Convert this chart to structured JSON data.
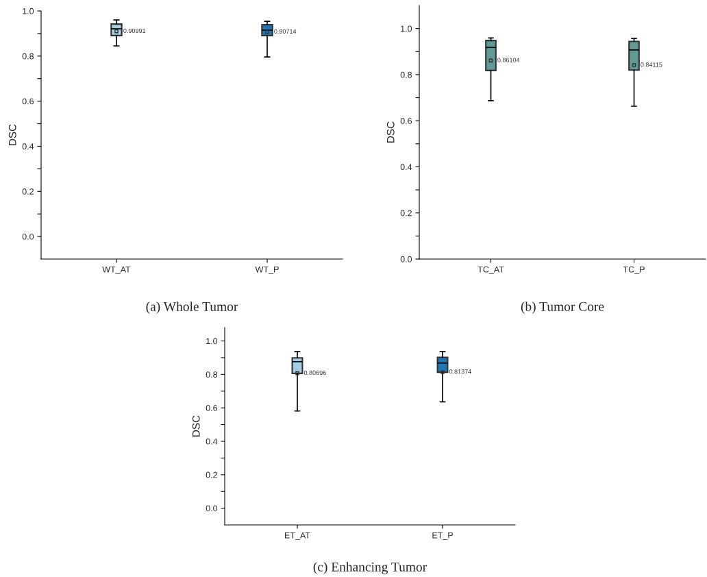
{
  "chart_data": [
    {
      "type": "box",
      "title": "(a) Whole Tumor",
      "ylabel": "DSC",
      "categories": [
        "WT_AT",
        "WT_P"
      ],
      "colors": [
        "#a6cee3",
        "#1f78b4"
      ],
      "boxes": [
        {
          "low": 0.845,
          "q1": 0.891,
          "median": 0.921,
          "q3": 0.942,
          "high": 0.96,
          "mean": 0.90991
        },
        {
          "low": 0.796,
          "q1": 0.891,
          "median": 0.915,
          "q3": 0.939,
          "high": 0.954,
          "mean": 0.90714
        }
      ],
      "annotations": [
        "0.90991",
        "0.90714"
      ],
      "ylim": [
        -0.1,
        1.0
      ],
      "yticks": [
        {
          "value": 0,
          "label": "0.0"
        },
        {
          "value": 0.1,
          "label": null
        },
        0.2,
        {
          "value": 0.3,
          "label": null
        },
        0.4,
        {
          "value": 0.5,
          "label": null
        },
        0.6,
        {
          "value": 0.7,
          "label": null
        },
        0.8,
        {
          "value": 0.9,
          "label": null
        },
        {
          "value": 1,
          "label": "1.0"
        }
      ],
      "grid": false,
      "legend": false
    },
    {
      "type": "box",
      "title": "(b) Tumor Core",
      "ylabel": "DSC",
      "categories": [
        "TC_AT",
        "TC_P"
      ],
      "colors": [
        "#5f9a97",
        "#5f9a97"
      ],
      "boxes": [
        {
          "low": 0.687,
          "q1": 0.818,
          "median": 0.918,
          "q3": 0.948,
          "high": 0.959,
          "mean": 0.86104
        },
        {
          "low": 0.663,
          "q1": 0.82,
          "median": 0.907,
          "q3": 0.944,
          "high": 0.957,
          "mean": 0.84115
        }
      ],
      "annotations": [
        "0.86104",
        "0.84115"
      ],
      "ylim": [
        0.0,
        1.1
      ],
      "yticks": [
        {
          "value": 0,
          "label": "0.0"
        },
        {
          "value": 0.1,
          "label": null
        },
        0.2,
        {
          "value": 0.3,
          "label": null
        },
        0.4,
        {
          "value": 0.5,
          "label": null
        },
        0.6,
        {
          "value": 0.7,
          "label": null
        },
        0.8,
        {
          "value": 0.9,
          "label": null
        },
        {
          "value": 1,
          "label": "1.0"
        }
      ],
      "grid": false,
      "legend": false
    },
    {
      "type": "box",
      "title": "(c) Enhancing Tumor",
      "ylabel": "DSC",
      "categories": [
        "ET_AT",
        "ET_P"
      ],
      "colors": [
        "#a6cee3",
        "#1f78b4"
      ],
      "boxes": [
        {
          "low": 0.581,
          "q1": 0.806,
          "median": 0.876,
          "q3": 0.899,
          "high": 0.936,
          "mean": 0.80696
        },
        {
          "low": 0.636,
          "q1": 0.813,
          "median": 0.868,
          "q3": 0.902,
          "high": 0.936,
          "mean": 0.81374
        }
      ],
      "annotations": [
        "0.80696",
        "0.81374"
      ],
      "ylim": [
        -0.1,
        1.08
      ],
      "yticks": [
        {
          "value": 0,
          "label": "0.0"
        },
        {
          "value": 0.1,
          "label": null
        },
        0.2,
        {
          "value": 0.3,
          "label": null
        },
        0.4,
        {
          "value": 0.5,
          "label": null
        },
        0.6,
        {
          "value": 0.7,
          "label": null
        },
        0.8,
        {
          "value": 0.9,
          "label": null
        },
        {
          "value": 1,
          "label": "1.0"
        }
      ],
      "grid": false,
      "legend": false
    }
  ]
}
